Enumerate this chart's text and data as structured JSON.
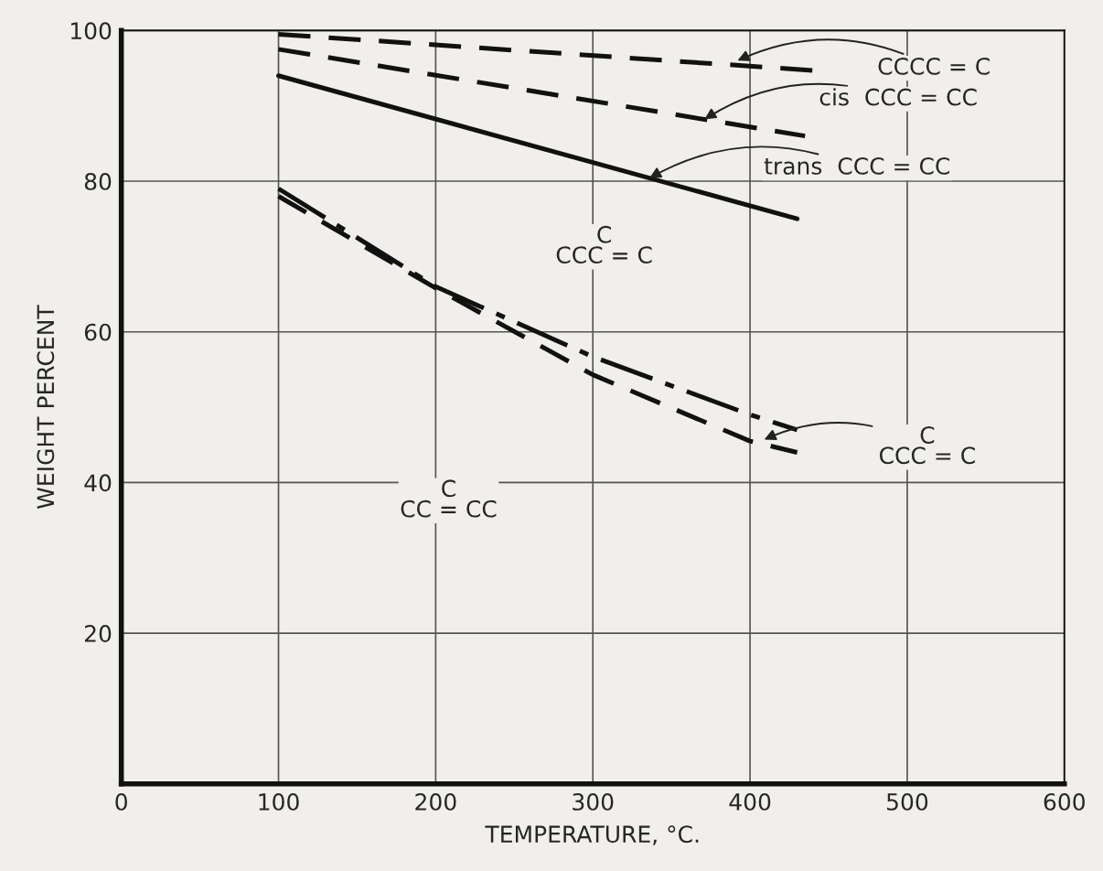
{
  "chart_data": {
    "type": "line",
    "xlabel": "TEMPERATURE, °C.",
    "ylabel": "WEIGHT PERCENT",
    "series": [
      {
        "color": "#111111",
        "line_style": "dashed",
        "x": [
          100,
          440
        ],
        "values": [
          99.5,
          94.7
        ]
      },
      {
        "color": "#111111",
        "line_style": "dashed",
        "x": [
          100,
          435
        ],
        "values": [
          97.5,
          86
        ]
      },
      {
        "color": "#111111",
        "line_style": "solid",
        "x": [
          100,
          430
        ],
        "values": [
          94,
          75
        ]
      },
      {
        "color": "#111111",
        "line_style": "dashdot",
        "x": [
          100,
          200,
          300,
          400,
          430
        ],
        "values": [
          79,
          66,
          56.7,
          49,
          47
        ]
      },
      {
        "color": "#111111",
        "line_style": "dashed",
        "x": [
          100,
          200,
          300,
          400,
          430
        ],
        "values": [
          78,
          65.8,
          54.3,
          45.5,
          44
        ]
      }
    ],
    "annotations": [
      {
        "text": "CCCC = C",
        "x": 392,
        "y": 96
      },
      {
        "text": "cis  CCC = CC",
        "x": 371,
        "y": 88.2
      },
      {
        "text": "trans  CCC = CC",
        "x": 336,
        "y": 80.4
      },
      {
        "text": "C\nCCC = C",
        "x": 409,
        "y": 45.7
      },
      "C\nCCC = C",
      "C\nCC = CC"
    ],
    "xlim": [
      0,
      600
    ],
    "ylim": [
      0,
      100
    ],
    "xticks": [
      0,
      100,
      200,
      300,
      400,
      500,
      600
    ],
    "yticks": [
      20,
      40,
      60,
      80,
      100
    ],
    "grid": true,
    "marker": "none"
  }
}
